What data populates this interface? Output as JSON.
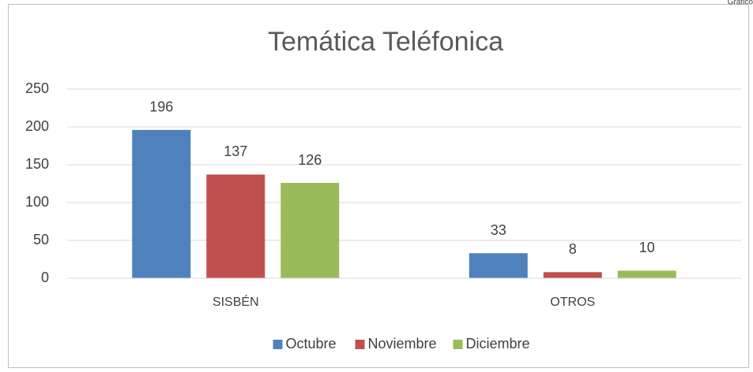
{
  "sheet_label": "Gráfico",
  "chart_data": {
    "type": "bar",
    "title": "Temática Teléfonica",
    "categories": [
      "SISBÉN",
      "OTROS"
    ],
    "series": [
      {
        "name": "Octubre",
        "color": "#4f81bd",
        "values": [
          196,
          33
        ]
      },
      {
        "name": "Noviembre",
        "color": "#c0504d",
        "values": [
          137,
          8
        ]
      },
      {
        "name": "Diciembre",
        "color": "#9bbb59",
        "values": [
          126,
          10
        ]
      }
    ],
    "ylim": [
      0,
      250
    ],
    "yticks": [
      0,
      50,
      100,
      150,
      200,
      250
    ],
    "grid": true,
    "legend": "bottom"
  }
}
